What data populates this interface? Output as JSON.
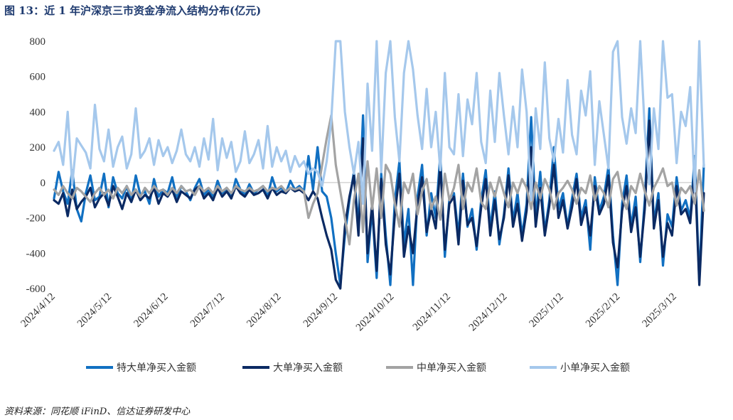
{
  "title": "图 13：近 1 年沪深京三市资金净流入结构分布(亿元)",
  "source": "资料来源：同花顺 iFinD、信达证券研发中心",
  "colors": {
    "特大单": "#1170c2",
    "大单": "#0b2a63",
    "中单": "#a3a3a3",
    "小单": "#a5c8ec",
    "axis": "#bfbfbf"
  },
  "chart_data": {
    "type": "line",
    "title": "近 1 年沪深京三市资金净流入结构分布(亿元)",
    "ylabel": "",
    "xlabel": "",
    "ylim": [
      -600,
      800
    ],
    "yticks": [
      -600,
      -400,
      -200,
      0,
      200,
      400,
      600,
      800
    ],
    "x_tick_labels": [
      "2024/4/12",
      "2024/5/12",
      "2024/6/12",
      "2024/7/12",
      "2024/8/12",
      "2024/9/12",
      "2024/10/12",
      "2024/11/12",
      "2024/12/12",
      "2025/1/12",
      "2025/2/12",
      "2025/3/12"
    ],
    "legend_position": "bottom",
    "series": [
      {
        "name": "特大单净买入金额",
        "key": "特大单",
        "values": [
          -90,
          60,
          -50,
          -120,
          70,
          -150,
          -220,
          -60,
          40,
          -100,
          -80,
          50,
          -140,
          30,
          -60,
          -90,
          -20,
          -110,
          40,
          -70,
          -50,
          -120,
          20,
          -80,
          -40,
          -60,
          30,
          -90,
          -20,
          -50,
          -100,
          -30,
          20,
          -70,
          -40,
          -80,
          10,
          -60,
          -30,
          -90,
          20,
          -40,
          -70,
          -10,
          -60,
          -40,
          -20,
          -80,
          30,
          -50,
          -30,
          -60,
          10,
          -40,
          -20,
          -50,
          150,
          -40,
          200,
          -50,
          -80,
          -200,
          -400,
          -580,
          -300,
          -100,
          60,
          -250,
          380,
          -450,
          -150,
          -540,
          50,
          -300,
          -580,
          -100,
          120,
          -350,
          -150,
          -580,
          -80,
          100,
          -300,
          -60,
          -200,
          160,
          -420,
          -90,
          -60,
          -300,
          50,
          -250,
          -150,
          -380,
          -100,
          70,
          -260,
          -50,
          -350,
          -180,
          80,
          -220,
          -60,
          -300,
          -120,
          370,
          -200,
          60,
          -280,
          -100,
          200,
          -150,
          -60,
          -250,
          -90,
          50,
          -200,
          -100,
          -380,
          30,
          -160,
          -80,
          90,
          -300,
          -580,
          -120,
          40,
          -250,
          -80,
          -450,
          -100,
          420,
          -230,
          -60,
          -470,
          -180,
          -250,
          30,
          -160,
          -100,
          -200,
          150,
          -560,
          100
        ],
        "color_key": "特大单"
      },
      {
        "name": "大单净买入金额",
        "key": "大单",
        "values": [
          -100,
          -120,
          -60,
          -190,
          -40,
          -150,
          -110,
          -80,
          -30,
          -140,
          -90,
          -60,
          -130,
          -20,
          -80,
          -150,
          -60,
          -110,
          -40,
          -100,
          -70,
          -90,
          -30,
          -120,
          -60,
          -80,
          -40,
          -110,
          -50,
          -70,
          -90,
          -40,
          -20,
          -90,
          -60,
          -100,
          -30,
          -80,
          -50,
          -90,
          -20,
          -60,
          -80,
          -40,
          -70,
          -60,
          -40,
          -90,
          -30,
          -70,
          -50,
          -60,
          -30,
          -50,
          -40,
          -60,
          -100,
          -50,
          -90,
          -200,
          -300,
          -380,
          -550,
          -600,
          -250,
          -80,
          40,
          -300,
          250,
          -400,
          -120,
          -500,
          20,
          -350,
          -520,
          -180,
          50,
          -420,
          -250,
          -400,
          -120,
          30,
          -280,
          -150,
          -260,
          100,
          -380,
          -120,
          -80,
          -350,
          10,
          -240,
          -200,
          -360,
          -140,
          20,
          -300,
          -100,
          -320,
          -200,
          40,
          -250,
          -120,
          -330,
          -160,
          200,
          -250,
          -30,
          -300,
          -130,
          100,
          -200,
          -100,
          -260,
          -140,
          20,
          -240,
          -140,
          -300,
          -20,
          -180,
          -120,
          40,
          -340,
          -480,
          -160,
          -20,
          -280,
          -140,
          -420,
          -150,
          350,
          -260,
          -100,
          -420,
          -230,
          -300,
          -20,
          -180,
          -150,
          -230,
          80,
          -580,
          -60
        ],
        "color_key": "大单"
      },
      {
        "name": "中单净买入金额",
        "key": "中单",
        "values": [
          -40,
          -70,
          -20,
          -60,
          -90,
          -30,
          -50,
          -80,
          -110,
          -60,
          -30,
          -70,
          -40,
          -90,
          -30,
          -60,
          -20,
          -70,
          -40,
          -80,
          -30,
          -60,
          -20,
          -50,
          -40,
          -70,
          -30,
          -60,
          -20,
          -50,
          -40,
          -70,
          -20,
          -50,
          -30,
          -60,
          -20,
          -50,
          -30,
          -60,
          -20,
          -40,
          -50,
          -30,
          -50,
          -40,
          -20,
          -50,
          -30,
          -40,
          -20,
          -50,
          -30,
          -40,
          -30,
          -50,
          -200,
          -120,
          -60,
          100,
          250,
          380,
          100,
          -50,
          -200,
          -350,
          -100,
          50,
          -280,
          120,
          -150,
          80,
          -200,
          100,
          50,
          -120,
          -250,
          0,
          -60,
          50,
          -180,
          -50,
          20,
          -150,
          -80,
          -210,
          50,
          -100,
          -30,
          100,
          -150,
          0,
          -50,
          80,
          -110,
          -150,
          0,
          -80,
          30,
          -60,
          -140,
          0,
          -60,
          20,
          -30,
          -150,
          0,
          -90,
          20,
          -40,
          -150,
          -60,
          -30,
          10,
          -40,
          -120,
          -30,
          -60,
          40,
          -100,
          -20,
          -60,
          -140,
          20,
          60,
          -80,
          -150,
          -20,
          -60,
          50,
          -50,
          -130,
          -30,
          20,
          80,
          -20,
          0,
          -130,
          -30,
          -60,
          -20,
          -120,
          70,
          -160
        ]
      },
      {
        "name": "小单净买入金额",
        "key": "小单",
        "values": [
          180,
          230,
          100,
          400,
          -10,
          250,
          210,
          170,
          80,
          440,
          190,
          120,
          300,
          90,
          200,
          260,
          80,
          160,
          420,
          140,
          180,
          250,
          100,
          240,
          150,
          200,
          110,
          180,
          300,
          160,
          120,
          200,
          90,
          250,
          130,
          360,
          70,
          250,
          140,
          230,
          60,
          120,
          290,
          110,
          160,
          240,
          80,
          320,
          90,
          200,
          120,
          180,
          60,
          150,
          90,
          120,
          50,
          80,
          60,
          -20,
          120,
          350,
          800,
          800,
          400,
          200,
          50,
          230,
          -120,
          560,
          180,
          800,
          60,
          620,
          800,
          370,
          120,
          620,
          800,
          640,
          380,
          190,
          530,
          200,
          400,
          70,
          620,
          200,
          160,
          500,
          150,
          470,
          330,
          620,
          230,
          110,
          520,
          230,
          620,
          380,
          160,
          430,
          200,
          640,
          400,
          -100,
          420,
          190,
          680,
          250,
          120,
          360,
          170,
          580,
          270,
          160,
          520,
          380,
          630,
          100,
          460,
          270,
          80,
          740,
          800,
          370,
          220,
          420,
          280,
          800,
          300,
          -10,
          420,
          190,
          800,
          480,
          500,
          110,
          400,
          320,
          540,
          -50,
          800,
          90
        ]
      }
    ]
  }
}
